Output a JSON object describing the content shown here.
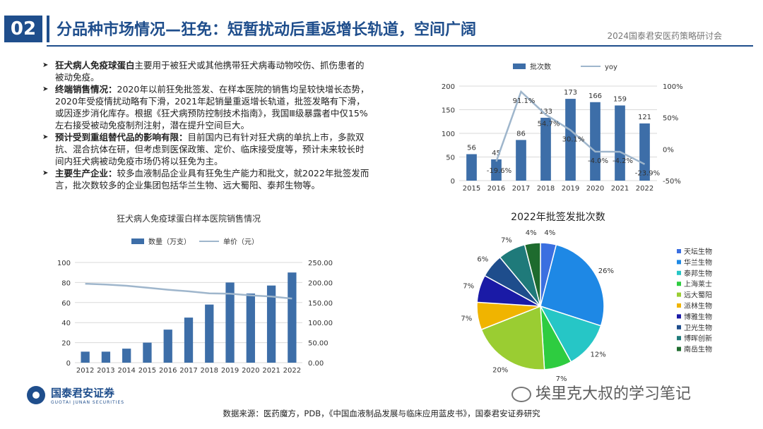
{
  "header": {
    "section_number": "02",
    "title": "分品种市场情况—狂免：短暂扰动后重返增长轨道，空间广阔",
    "conference": "2024国泰君安医药策略研讨会"
  },
  "bullets": [
    {
      "label": "狂犬病人免疫球蛋白",
      "text": "主要用于被狂犬或其他携带狂犬病毒动物咬伤、抓伤患者的被动免疫。"
    },
    {
      "label": "终端销售情况：",
      "text": "2020年以前狂免批签发、在样本医院的销售均呈较快增长态势，2020年受疫情扰动略有下滑，2021年起销量重返增长轨道，批签发略有下滑，或因逐步消化库存。根据《狂犬病预防控制技术指南》，我国Ⅲ级暴露者中仅15%左右接受被动免疫制剂注射，潜在提升空间巨大。"
    },
    {
      "label": "预计受到重组替代品的影响有限：",
      "text": "目前国内已有针对狂犬病的单抗上市，多款双抗、混合抗体在研，但考虑到医保政策、定价、临床接受度等，预计未来较长时间内狂犬病被动免疫市场仍将以狂免为主。"
    },
    {
      "label": "主要生产企业：",
      "text": "较多血液制品企业具有狂免生产能力和批文，就2022年批签发而言，批次数较多的企业集团包括华兰生物、远大蜀阳、泰邦生物等。"
    }
  ],
  "footer": {
    "source": "数据来源：医药魔方，PDB，《中国血液制品发展与临床应用蓝皮书》，国泰君安证券研究",
    "logo_cn": "国泰君安证券",
    "logo_en": "GUOTAI JUNAN SECURITIES",
    "watermark": "埃里克大叔的学习笔记"
  },
  "colors": {
    "bar": "#3d6ea8",
    "line": "#9fb6cc",
    "brand": "#1f4e8c"
  },
  "chart_data": [
    {
      "type": "bar",
      "title": "",
      "categories": [
        "2015",
        "2016",
        "2017",
        "2018",
        "2019",
        "2020",
        "2021",
        "2022"
      ],
      "series": [
        {
          "name": "批次数",
          "type": "bar",
          "axis": "left",
          "values": [
            56,
            45,
            86,
            133,
            173,
            166,
            159,
            121
          ]
        },
        {
          "name": "yoy",
          "type": "line",
          "axis": "right",
          "values": [
            null,
            -19.6,
            91.1,
            54.7,
            30.1,
            -4.0,
            -4.2,
            -23.9
          ]
        }
      ],
      "bar_labels": [
        "56",
        "45",
        "86",
        "133",
        "173",
        "166",
        "159",
        "121"
      ],
      "line_labels": [
        "",
        "-19.6%",
        "91.1%",
        "54.7%",
        "30.1%",
        "-4.0%",
        "-4.2%",
        "-23.9%"
      ],
      "ylim": [
        0,
        200
      ],
      "yticks": [
        "0",
        "50",
        "100",
        "150",
        "200"
      ],
      "y2lim": [
        -50,
        100
      ],
      "y2ticks": [
        "-50%",
        "0%",
        "50%",
        "100%"
      ],
      "legend": "top"
    },
    {
      "type": "bar",
      "title": "狂犬病人免疫球蛋白样本医院销售情况",
      "categories": [
        "2012",
        "2013",
        "2014",
        "2015",
        "2016",
        "2017",
        "2018",
        "2019",
        "2020",
        "2021",
        "2022"
      ],
      "series": [
        {
          "name": "数量（万支）",
          "type": "bar",
          "axis": "left",
          "values": [
            11,
            11,
            14,
            20,
            33,
            45,
            58,
            80,
            69,
            77,
            90
          ]
        },
        {
          "name": "单价（元）",
          "type": "line",
          "axis": "right",
          "values": [
            197,
            195,
            192,
            187,
            182,
            178,
            173,
            172,
            168,
            165,
            160
          ]
        }
      ],
      "ylim": [
        0,
        100
      ],
      "yticks": [
        "0",
        "20",
        "40",
        "60",
        "80",
        "100"
      ],
      "y2lim": [
        0,
        250
      ],
      "y2ticks": [
        "0.00",
        "50.00",
        "100.00",
        "150.00",
        "200.00",
        "250.00"
      ],
      "legend": "top"
    },
    {
      "type": "pie",
      "title": "2022年批签发批次数",
      "series": [
        {
          "name": "天坛生物",
          "value": 4,
          "label": "4%",
          "color": "#3b6fe0"
        },
        {
          "name": "华兰生物",
          "value": 26,
          "label": "26%",
          "color": "#1e88e5"
        },
        {
          "name": "泰邦生物",
          "value": 12,
          "label": "12%",
          "color": "#26c6c6"
        },
        {
          "name": "上海莱士",
          "value": 7,
          "label": "7%",
          "color": "#2ecc40"
        },
        {
          "name": "远大蜀阳",
          "value": 20,
          "label": "20%",
          "color": "#9acd32"
        },
        {
          "name": "派林生物",
          "value": 7,
          "label": "7%",
          "color": "#f0b400"
        },
        {
          "name": "博雅生物",
          "value": 7,
          "label": "7%",
          "color": "#1a1aa6"
        },
        {
          "name": "卫光生物",
          "value": 6,
          "label": "6%",
          "color": "#1e4d8c"
        },
        {
          "name": "博晖创新",
          "value": 7,
          "label": "7%",
          "color": "#1f7a7a"
        },
        {
          "name": "南岳生物",
          "value": 4,
          "label": "4%",
          "color": "#1e6b2e"
        }
      ],
      "legend": "right"
    }
  ]
}
